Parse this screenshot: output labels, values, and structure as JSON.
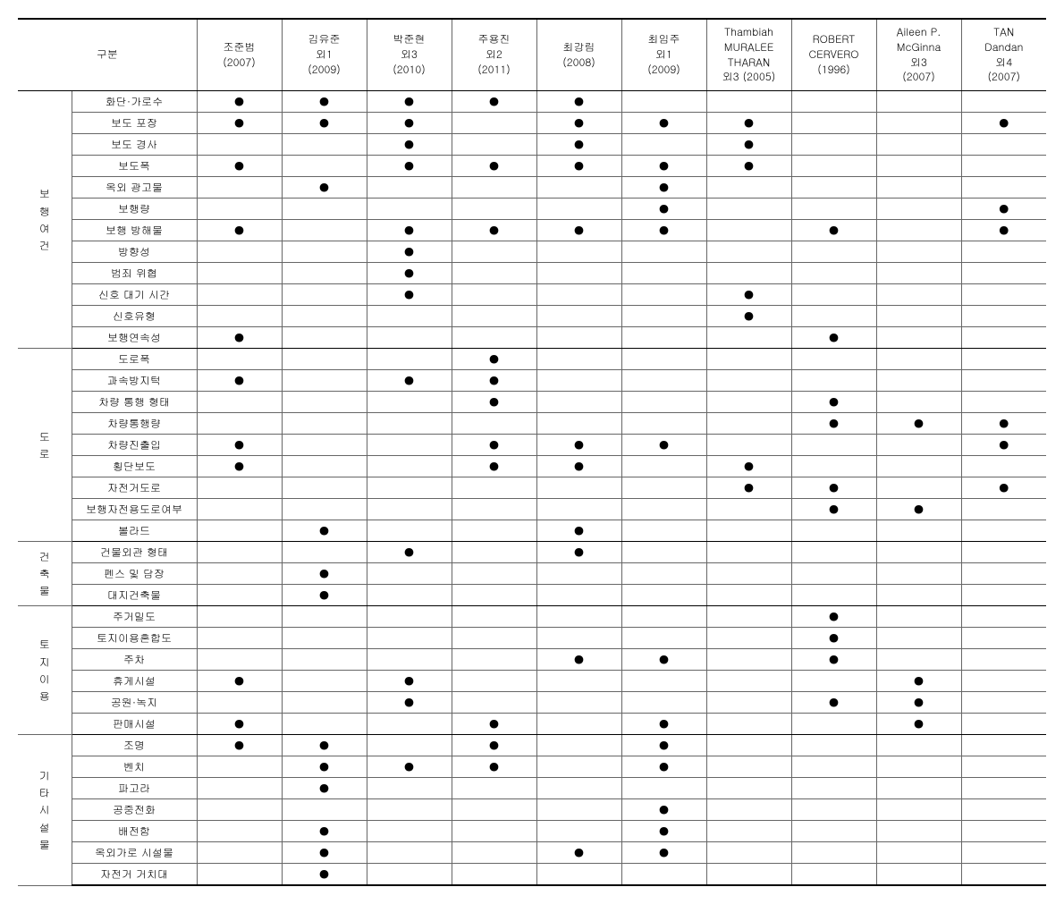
{
  "header": {
    "gubun": "구분",
    "cols": [
      "조준범\n(2007)",
      "김유준\n외1\n(2009)",
      "박준현\n외3\n(2010)",
      "주용진\n외2\n(2011)",
      "최강림\n(2008)",
      "최임주\n외1\n(2009)",
      "Thambiah\nMURALEE\nTHARAN\n외3 (2005)",
      "ROBERT\nCERVERO\n(1996)",
      "Aileen P.\nMcGinna\n외3\n(2007)",
      "TAN\nDandan\n외4\n(2007)"
    ]
  },
  "categories": [
    {
      "label": "보\n행\n여\n건",
      "rows": [
        {
          "item": "화단·가로수",
          "v": [
            "●",
            "●",
            "●",
            "●",
            "●",
            "",
            "",
            "",
            "",
            ""
          ]
        },
        {
          "item": "보도 포장",
          "v": [
            "●",
            "●",
            "●",
            "",
            "●",
            "●",
            "●",
            "",
            "",
            "●"
          ]
        },
        {
          "item": "보도 경사",
          "v": [
            "",
            "",
            "●",
            "",
            "●",
            "",
            "●",
            "",
            "",
            ""
          ]
        },
        {
          "item": "보도폭",
          "v": [
            "●",
            "",
            "●",
            "●",
            "●",
            "●",
            "●",
            "",
            "",
            ""
          ]
        },
        {
          "item": "옥외 광고물",
          "v": [
            "",
            "●",
            "",
            "",
            "",
            "●",
            "",
            "",
            "",
            ""
          ]
        },
        {
          "item": "보행량",
          "v": [
            "",
            "",
            "",
            "",
            "",
            "●",
            "",
            "",
            "",
            "●"
          ]
        },
        {
          "item": "보행 방해물",
          "v": [
            "●",
            "",
            "●",
            "●",
            "●",
            "●",
            "",
            "●",
            "",
            "●"
          ]
        },
        {
          "item": "방향성",
          "v": [
            "",
            "",
            "●",
            "",
            "",
            "",
            "",
            "",
            "",
            ""
          ]
        },
        {
          "item": "범죄 위협",
          "v": [
            "",
            "",
            "●",
            "",
            "",
            "",
            "",
            "",
            "",
            ""
          ]
        },
        {
          "item": "신호 대기 시간",
          "v": [
            "",
            "",
            "●",
            "",
            "",
            "",
            "●",
            "",
            "",
            ""
          ]
        },
        {
          "item": "신호유형",
          "v": [
            "",
            "",
            "",
            "",
            "",
            "",
            "●",
            "",
            "",
            ""
          ]
        },
        {
          "item": "보행연속성",
          "v": [
            "●",
            "",
            "",
            "",
            "",
            "",
            "",
            "●",
            "",
            ""
          ]
        }
      ]
    },
    {
      "label": "도\n로",
      "rows": [
        {
          "item": "도로폭",
          "v": [
            "",
            "",
            "",
            "●",
            "",
            "",
            "",
            "",
            "",
            ""
          ]
        },
        {
          "item": "과속방지턱",
          "v": [
            "●",
            "",
            "●",
            "●",
            "",
            "",
            "",
            "",
            "",
            ""
          ]
        },
        {
          "item": "차량 통행 형태",
          "v": [
            "",
            "",
            "",
            "●",
            "",
            "",
            "",
            "●",
            "",
            ""
          ]
        },
        {
          "item": "차량통행량",
          "v": [
            "",
            "",
            "",
            "",
            "",
            "",
            "",
            "●",
            "●",
            "●"
          ]
        },
        {
          "item": "차량진출입",
          "v": [
            "●",
            "",
            "",
            "●",
            "●",
            "●",
            "",
            "",
            "",
            "●"
          ]
        },
        {
          "item": "횡단보도",
          "v": [
            "●",
            "",
            "",
            "●",
            "●",
            "",
            "●",
            "",
            "",
            ""
          ]
        },
        {
          "item": "자전거도로",
          "v": [
            "",
            "",
            "",
            "",
            "",
            "",
            "●",
            "●",
            "",
            "●"
          ]
        },
        {
          "item": "보행자전용도로여부",
          "v": [
            "",
            "",
            "",
            "",
            "",
            "",
            "",
            "●",
            "●",
            ""
          ]
        },
        {
          "item": "볼라드",
          "v": [
            "",
            "●",
            "",
            "",
            "●",
            "",
            "",
            "",
            "",
            ""
          ]
        }
      ]
    },
    {
      "label": "건\n축\n물",
      "rows": [
        {
          "item": "건물외관 형태",
          "v": [
            "",
            "",
            "●",
            "",
            "●",
            "",
            "",
            "",
            "",
            ""
          ]
        },
        {
          "item": "펜스 및 담장",
          "v": [
            "",
            "●",
            "",
            "",
            "",
            "",
            "",
            "",
            "",
            ""
          ]
        },
        {
          "item": "대지건축물",
          "v": [
            "",
            "●",
            "",
            "",
            "",
            "",
            "",
            "",
            "",
            ""
          ]
        }
      ]
    },
    {
      "label": "토\n지\n이\n용",
      "rows": [
        {
          "item": "주거밀도",
          "v": [
            "",
            "",
            "",
            "",
            "",
            "",
            "",
            "●",
            "",
            ""
          ]
        },
        {
          "item": "토지이용혼합도",
          "v": [
            "",
            "",
            "",
            "",
            "",
            "",
            "",
            "●",
            "",
            ""
          ]
        },
        {
          "item": "주차",
          "v": [
            "",
            "",
            "",
            "",
            "●",
            "●",
            "",
            "●",
            "",
            ""
          ]
        },
        {
          "item": "휴게시설",
          "v": [
            "●",
            "",
            "●",
            "",
            "",
            "",
            "",
            "",
            "●",
            ""
          ]
        },
        {
          "item": "공원·녹지",
          "v": [
            "",
            "",
            "●",
            "",
            "",
            "",
            "",
            "●",
            "●",
            ""
          ]
        },
        {
          "item": "판매시설",
          "v": [
            "●",
            "",
            "",
            "●",
            "",
            "●",
            "",
            "",
            "●",
            ""
          ]
        }
      ]
    },
    {
      "label": "기\n타\n시\n설\n물",
      "rows": [
        {
          "item": "조명",
          "v": [
            "●",
            "●",
            "",
            "●",
            "",
            "●",
            "",
            "",
            "",
            ""
          ]
        },
        {
          "item": "벤치",
          "v": [
            "",
            "●",
            "●",
            "●",
            "",
            "●",
            "",
            "",
            "",
            ""
          ]
        },
        {
          "item": "파고라",
          "v": [
            "",
            "●",
            "",
            "",
            "",
            "",
            "",
            "",
            "",
            ""
          ]
        },
        {
          "item": "공중전화",
          "v": [
            "",
            "",
            "",
            "",
            "",
            "●",
            "",
            "",
            "",
            ""
          ]
        },
        {
          "item": "배전함",
          "v": [
            "",
            "●",
            "",
            "",
            "",
            "●",
            "",
            "",
            "",
            ""
          ]
        },
        {
          "item": "옥외가로 시설물",
          "v": [
            "",
            "●",
            "",
            "",
            "●",
            "●",
            "",
            "",
            "",
            ""
          ]
        },
        {
          "item": "자전거 거치대",
          "v": [
            "",
            "●",
            "",
            "",
            "",
            "",
            "",
            "",
            "",
            ""
          ]
        }
      ]
    }
  ]
}
